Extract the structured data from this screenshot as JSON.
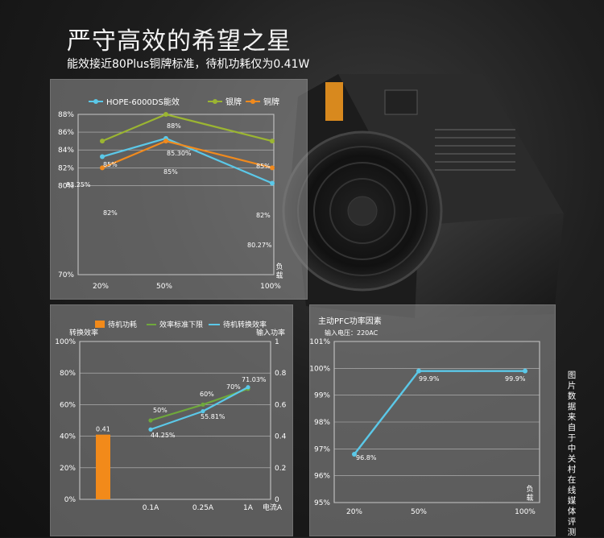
{
  "title": "严守高效的希望之星",
  "subtitle": "能效接近80Plus铜牌标准，待机功耗仅为0.41W",
  "side_note": "图片数据来自于中关村在线媒体评测",
  "colors": {
    "hope": "#5bc8e8",
    "silver": "#9bb532",
    "bronze": "#f08a1e",
    "green": "#6fa83c",
    "bar": "#f28a1a"
  },
  "chart_data": [
    {
      "type": "line",
      "categories": [
        "20%",
        "50%",
        "100%"
      ],
      "x_axis_label": "负载",
      "ylim": [
        70,
        88
      ],
      "yticks": [
        "70%",
        "80%",
        "82%",
        "84%",
        "86%",
        "88%"
      ],
      "series": [
        {
          "name": "HOPE-6000DS能效",
          "color": "#5bc8e8",
          "values": [
            83.25,
            85.3,
            80.27
          ],
          "labels": [
            "83.25%",
            "85.30%",
            "80.27%"
          ]
        },
        {
          "name": "银牌",
          "color": "#9bb532",
          "values": [
            85,
            88,
            85
          ],
          "labels": [
            "85%",
            "88%",
            "85%"
          ]
        },
        {
          "name": "铜牌",
          "color": "#f08a1e",
          "values": [
            82,
            85,
            82
          ],
          "labels": [
            "82%",
            "85%",
            "82%"
          ]
        }
      ]
    },
    {
      "type": "bar",
      "categories": [
        "0.1A",
        "0.25A",
        "1A"
      ],
      "x_axis_label": "电流A",
      "left_axis_label": "转换效率",
      "right_axis_label": "输入功率",
      "yticks_left": [
        "0%",
        "20%",
        "40%",
        "60%",
        "80%",
        "100%"
      ],
      "yticks_right": [
        "0",
        "0.2",
        "0.4",
        "0.6",
        "0.8",
        "1"
      ],
      "series": [
        {
          "name": "待机功耗",
          "color": "#f28a1a",
          "kind": "bar",
          "value": 0.41,
          "label": "0.41"
        },
        {
          "name": "效率标准下限",
          "color": "#6fa83c",
          "kind": "line",
          "values": [
            50,
            60,
            70
          ],
          "labels": [
            "50%",
            "60%",
            "70%"
          ]
        },
        {
          "name": "待机转换效率",
          "color": "#5bc8e8",
          "kind": "line",
          "values": [
            44.25,
            55.81,
            71.03
          ],
          "labels": [
            "44.25%",
            "55.81%",
            "71.03%"
          ]
        }
      ]
    },
    {
      "type": "line",
      "title": "主动PFC功率因素",
      "subtitle": "输入电压：220AC",
      "categories": [
        "20%",
        "50%",
        "100%"
      ],
      "x_axis_label": "负载",
      "ylim": [
        95,
        101
      ],
      "yticks": [
        "95%",
        "96%",
        "97%",
        "98%",
        "99%",
        "100%",
        "101%"
      ],
      "series": [
        {
          "name": "功率因素",
          "color": "#5bc8e8",
          "values": [
            96.8,
            99.9,
            99.9
          ],
          "labels": [
            "96.8%",
            "99.9%",
            "99.9%"
          ]
        }
      ]
    }
  ]
}
